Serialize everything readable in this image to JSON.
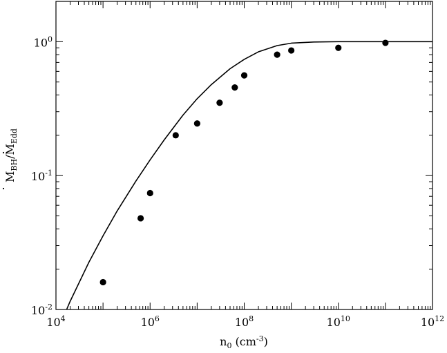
{
  "chart_data": {
    "type": "scatter",
    "xscale": "log",
    "yscale": "log",
    "xlim": [
      10000,
      1000000000000
    ],
    "ylim": [
      0.01,
      2
    ],
    "grid": false,
    "xlabel": {
      "base": "n",
      "sub": "0",
      "units_prefix": " (cm",
      "units_sup": "-3",
      "units_suffix": ")"
    },
    "ylabel": {
      "num_base": "M",
      "num_sub": "BH",
      "sep": "/",
      "den_base": "M",
      "den_sub": "Edd"
    },
    "x_tick_labels": [
      {
        "value": 10000,
        "base": "10",
        "exp": "4"
      },
      {
        "value": 1000000,
        "base": "10",
        "exp": "6"
      },
      {
        "value": 100000000,
        "base": "10",
        "exp": "8"
      },
      {
        "value": 10000000000,
        "base": "10",
        "exp": "10"
      },
      {
        "value": 1000000000000,
        "base": "10",
        "exp": "12"
      }
    ],
    "y_tick_labels": [
      {
        "value": 0.01,
        "base": "10",
        "exp": "-2"
      },
      {
        "value": 0.1,
        "base": "10",
        "exp": "-1"
      },
      {
        "value": 1,
        "base": "10",
        "exp": "0"
      }
    ],
    "series": [
      {
        "kind": "points",
        "x": [
          100000,
          630000,
          1000000,
          3500000,
          10000000,
          30000000,
          63000000,
          100000000,
          500000000,
          1000000000,
          10000000000,
          100000000000
        ],
        "y": [
          0.016,
          0.048,
          0.074,
          0.2,
          0.245,
          0.35,
          0.455,
          0.56,
          0.8,
          0.86,
          0.9,
          0.98
        ]
      },
      {
        "kind": "curve",
        "x": [
          10000,
          20000,
          50000,
          100000,
          200000,
          500000,
          1000000,
          2000000,
          5000000,
          10000000,
          20000000,
          50000000,
          100000000,
          200000000,
          500000000,
          1000000000,
          3000000000,
          10000000000,
          100000000000,
          1000000000000
        ],
        "y": [
          0.0065,
          0.0115,
          0.0225,
          0.0355,
          0.0545,
          0.091,
          0.131,
          0.185,
          0.283,
          0.375,
          0.478,
          0.628,
          0.738,
          0.84,
          0.935,
          0.975,
          0.994,
          1.0,
          1.0,
          1.0
        ]
      }
    ]
  }
}
